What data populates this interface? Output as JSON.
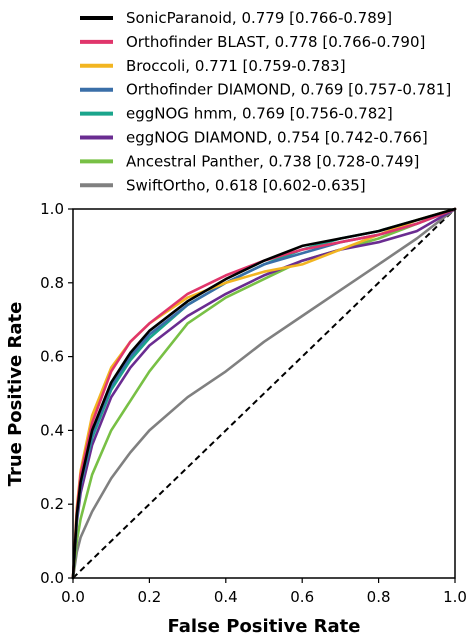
{
  "chart_data": {
    "type": "line",
    "xlabel": "False Positive Rate",
    "ylabel": "True Positive Rate",
    "xlim": [
      0.0,
      1.0
    ],
    "ylim": [
      0.0,
      1.0
    ],
    "x_ticks": [
      "0.0",
      "0.2",
      "0.4",
      "0.6",
      "0.8",
      "1.0"
    ],
    "y_ticks": [
      "0.0",
      "0.2",
      "0.4",
      "0.6",
      "0.8",
      "1.0"
    ],
    "grid": false,
    "legend_position": "top",
    "diagonal_reference": true,
    "series": [
      {
        "name": "SonicParanoid, 0.779 [0.766-0.789]",
        "color": "#000000",
        "x": [
          0,
          0.01,
          0.02,
          0.05,
          0.1,
          0.15,
          0.2,
          0.3,
          0.4,
          0.5,
          0.6,
          0.7,
          0.8,
          0.9,
          1.0
        ],
        "y": [
          0,
          0.17,
          0.26,
          0.4,
          0.53,
          0.61,
          0.67,
          0.75,
          0.81,
          0.86,
          0.9,
          0.92,
          0.94,
          0.97,
          1.0
        ]
      },
      {
        "name": "Orthofinder BLAST, 0.778 [0.766-0.790]",
        "color": "#e0356b",
        "x": [
          0,
          0.01,
          0.02,
          0.05,
          0.1,
          0.15,
          0.2,
          0.3,
          0.4,
          0.5,
          0.6,
          0.7,
          0.8,
          0.9,
          1.0
        ],
        "y": [
          0,
          0.18,
          0.28,
          0.42,
          0.56,
          0.64,
          0.69,
          0.77,
          0.82,
          0.86,
          0.89,
          0.91,
          0.93,
          0.96,
          1.0
        ]
      },
      {
        "name": "Broccoli, 0.771 [0.759-0.783]",
        "color": "#f2b521",
        "x": [
          0,
          0.01,
          0.02,
          0.05,
          0.1,
          0.15,
          0.2,
          0.3,
          0.4,
          0.5,
          0.6,
          0.7,
          0.8,
          0.9,
          1.0
        ],
        "y": [
          0,
          0.19,
          0.29,
          0.44,
          0.57,
          0.64,
          0.69,
          0.76,
          0.8,
          0.83,
          0.85,
          0.89,
          0.93,
          0.97,
          1.0
        ]
      },
      {
        "name": "Orthofinder DIAMOND, 0.769 [0.757-0.781]",
        "color": "#3a6fa8",
        "x": [
          0,
          0.01,
          0.02,
          0.05,
          0.1,
          0.15,
          0.2,
          0.3,
          0.4,
          0.5,
          0.6,
          0.7,
          0.8,
          0.9,
          1.0
        ],
        "y": [
          0,
          0.16,
          0.25,
          0.39,
          0.52,
          0.6,
          0.66,
          0.74,
          0.8,
          0.85,
          0.88,
          0.91,
          0.93,
          0.96,
          1.0
        ]
      },
      {
        "name": "eggNOG hmm, 0.769 [0.756-0.782]",
        "color": "#1aa58c",
        "x": [
          0,
          0.01,
          0.02,
          0.05,
          0.1,
          0.15,
          0.2,
          0.3,
          0.4,
          0.5,
          0.6,
          0.7,
          0.8,
          0.9,
          1.0
        ],
        "y": [
          0,
          0.16,
          0.25,
          0.38,
          0.51,
          0.59,
          0.65,
          0.74,
          0.8,
          0.85,
          0.89,
          0.92,
          0.94,
          0.97,
          1.0
        ]
      },
      {
        "name": "eggNOG DIAMOND, 0.754 [0.742-0.766]",
        "color": "#6a2c91",
        "x": [
          0,
          0.01,
          0.02,
          0.05,
          0.1,
          0.15,
          0.2,
          0.3,
          0.4,
          0.5,
          0.6,
          0.7,
          0.8,
          0.9,
          1.0
        ],
        "y": [
          0,
          0.15,
          0.23,
          0.36,
          0.49,
          0.57,
          0.63,
          0.71,
          0.77,
          0.82,
          0.86,
          0.89,
          0.91,
          0.94,
          1.0
        ]
      },
      {
        "name": "Ancestral Panther, 0.738 [0.728-0.749]",
        "color": "#78c045",
        "x": [
          0,
          0.01,
          0.02,
          0.05,
          0.1,
          0.15,
          0.2,
          0.3,
          0.4,
          0.5,
          0.6,
          0.7,
          0.8,
          0.9,
          1.0
        ],
        "y": [
          0,
          0.1,
          0.16,
          0.28,
          0.4,
          0.48,
          0.56,
          0.69,
          0.76,
          0.81,
          0.86,
          0.89,
          0.92,
          0.96,
          1.0
        ]
      },
      {
        "name": "SwiftOrtho, 0.618 [0.602-0.635]",
        "color": "#808080",
        "x": [
          0,
          0.01,
          0.02,
          0.05,
          0.1,
          0.15,
          0.2,
          0.3,
          0.4,
          0.5,
          0.6,
          0.7,
          0.8,
          0.9,
          1.0
        ],
        "y": [
          0,
          0.07,
          0.11,
          0.18,
          0.27,
          0.34,
          0.4,
          0.49,
          0.56,
          0.64,
          0.71,
          0.78,
          0.85,
          0.92,
          1.0
        ]
      }
    ]
  }
}
